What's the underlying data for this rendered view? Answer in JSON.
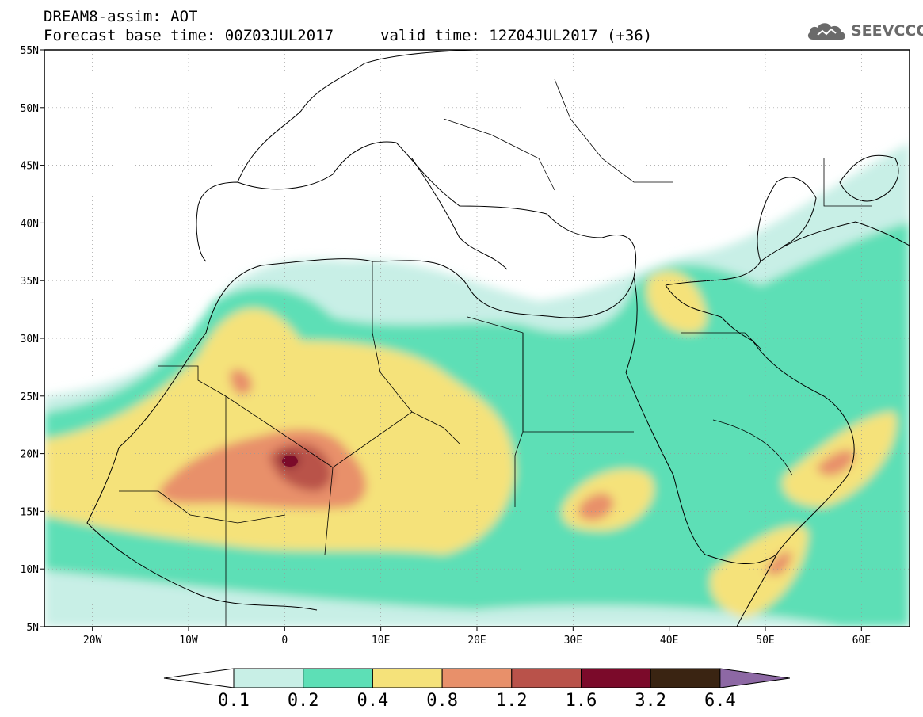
{
  "header": {
    "title_line1": "DREAM8-assim: AOT",
    "title_line2": "Forecast base time: 00Z03JUL2017",
    "valid_time": "valid time: 12Z04JUL2017 (+36)",
    "logo_text": "SEEVCCC"
  },
  "map": {
    "lon_range": [
      -25,
      65
    ],
    "lat_range": [
      5,
      55
    ],
    "lat_ticks": [
      {
        "value": 55,
        "label": "55N"
      },
      {
        "value": 50,
        "label": "50N"
      },
      {
        "value": 45,
        "label": "45N"
      },
      {
        "value": 40,
        "label": "40N"
      },
      {
        "value": 35,
        "label": "35N"
      },
      {
        "value": 30,
        "label": "30N"
      },
      {
        "value": 25,
        "label": "25N"
      },
      {
        "value": 20,
        "label": "20N"
      },
      {
        "value": 15,
        "label": "15N"
      },
      {
        "value": 10,
        "label": "10N"
      },
      {
        "value": 5,
        "label": "5N"
      }
    ],
    "lon_ticks": [
      {
        "value": -20,
        "label": "20W"
      },
      {
        "value": -10,
        "label": "10W"
      },
      {
        "value": 0,
        "label": "0"
      },
      {
        "value": 10,
        "label": "10E"
      },
      {
        "value": 20,
        "label": "20E"
      },
      {
        "value": 30,
        "label": "30E"
      },
      {
        "value": 40,
        "label": "40E"
      },
      {
        "value": 50,
        "label": "50E"
      },
      {
        "value": 60,
        "label": "60E"
      }
    ]
  },
  "colorbar": {
    "colors": [
      "#ffffff",
      "#c8efe6",
      "#5ddfb6",
      "#f5e27a",
      "#e8906a",
      "#b9524a",
      "#7b0a2a",
      "#3a2412",
      "#8d68a4"
    ],
    "labels": [
      "0.1",
      "0.2",
      "0.4",
      "0.8",
      "1.2",
      "1.6",
      "3.2",
      "6.4"
    ]
  }
}
